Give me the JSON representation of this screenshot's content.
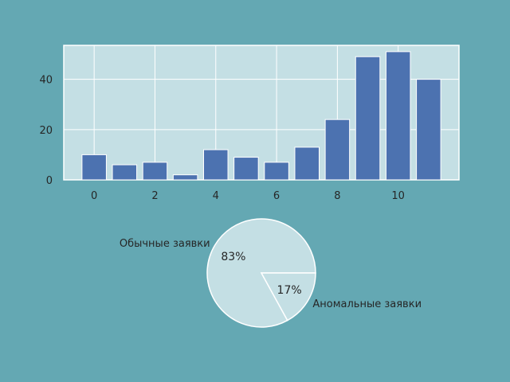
{
  "colors": {
    "figure_bg": "#64a8b3",
    "axes_bg": "#c4dfe4",
    "grid": "#ffffff",
    "bar": "#4c72b0",
    "pie_fill": "#c4dfe4",
    "pie_edge": "#ffffff",
    "text": "#262626"
  },
  "chart_data": [
    {
      "type": "bar",
      "title": "",
      "xlabel": "",
      "ylabel": "",
      "x": [
        0,
        1,
        2,
        3,
        4,
        5,
        6,
        7,
        8,
        9,
        10,
        11
      ],
      "values": [
        10,
        6,
        7,
        2,
        12,
        9,
        7,
        13,
        24,
        49,
        51,
        40
      ],
      "xlim": [
        -1,
        12
      ],
      "ylim": [
        0,
        53.5
      ],
      "xticks": [
        0,
        2,
        4,
        6,
        8,
        10
      ],
      "xtick_labels": [
        "0",
        "2",
        "4",
        "6",
        "8",
        "10"
      ],
      "yticks": [
        0,
        20,
        40
      ],
      "ytick_labels": [
        "0",
        "20",
        "40"
      ],
      "grid": true
    },
    {
      "type": "pie",
      "labels": [
        "Обычные заявки",
        "Аномальные заявки"
      ],
      "values": [
        83,
        17
      ],
      "pct_labels": [
        "83%",
        "17%"
      ]
    }
  ]
}
